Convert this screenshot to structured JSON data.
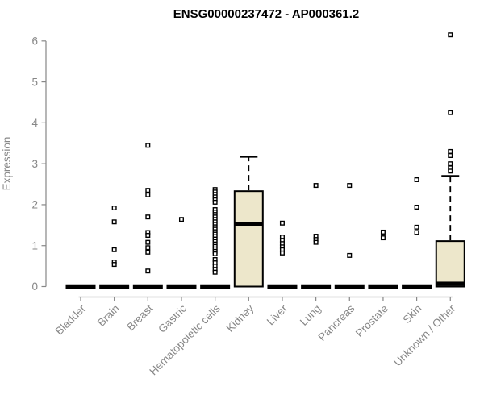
{
  "colors": {
    "axis": "#878787",
    "box_fill": "#ede7cb",
    "box_stroke": "#000000",
    "outlier_fill": "#ffffff",
    "outlier_stroke": "#000000",
    "title": "#000000",
    "background": "#ffffff"
  },
  "chart_data": {
    "type": "boxplot",
    "title": "ENSG00000237472 - AP000361.2",
    "ylabel": "Expression",
    "xlabel": "",
    "ylim": [
      0,
      6.2
    ],
    "yticks": [
      0,
      1,
      2,
      3,
      4,
      5,
      6
    ],
    "grid": false,
    "x_tick_rotation": 45,
    "categories": [
      "Bladder",
      "Brain",
      "Breast",
      "Gastric",
      "Hematopoietic cells",
      "Kidney",
      "Liver",
      "Lung",
      "Pancreas",
      "Prostate",
      "Skin",
      "Unknown / Other"
    ],
    "groups": [
      {
        "label": "Bladder",
        "q1": 0,
        "median": 0,
        "q3": 0,
        "whisker_high": 0,
        "outliers": []
      },
      {
        "label": "Brain",
        "q1": 0,
        "median": 0,
        "q3": 0,
        "whisker_high": 0,
        "outliers": [
          1.92,
          1.58,
          0.9,
          0.6,
          0.54
        ]
      },
      {
        "label": "Breast",
        "q1": 0,
        "median": 0,
        "q3": 0,
        "whisker_high": 0,
        "outliers": [
          3.45,
          2.35,
          2.24,
          1.7,
          1.32,
          1.25,
          1.08,
          0.95,
          0.84,
          0.38
        ]
      },
      {
        "label": "Gastric",
        "q1": 0,
        "median": 0,
        "q3": 0,
        "whisker_high": 0,
        "outliers": [
          1.64
        ]
      },
      {
        "label": "Hematopoietic cells",
        "q1": 0,
        "median": 0,
        "q3": 0,
        "whisker_high": 0,
        "outliers": [
          2.37,
          2.31,
          2.25,
          2.19,
          2.12,
          2.06,
          1.88,
          1.82,
          1.76,
          1.7,
          1.64,
          1.58,
          1.52,
          1.46,
          1.4,
          1.34,
          1.28,
          1.22,
          1.16,
          1.1,
          1.04,
          0.98,
          0.92,
          0.86,
          0.8,
          0.66,
          0.58,
          0.5,
          0.42,
          0.35
        ]
      },
      {
        "label": "Kidney",
        "q1": 0,
        "median": 1.53,
        "q3": 2.33,
        "whisker_high": 3.17,
        "outliers": []
      },
      {
        "label": "Liver",
        "q1": 0,
        "median": 0,
        "q3": 0,
        "whisker_high": 0,
        "outliers": [
          1.55,
          1.21,
          1.13,
          1.05,
          0.97,
          0.9,
          0.82
        ]
      },
      {
        "label": "Lung",
        "q1": 0,
        "median": 0,
        "q3": 0,
        "whisker_high": 0,
        "outliers": [
          2.47,
          1.23,
          1.15,
          1.08
        ]
      },
      {
        "label": "Pancreas",
        "q1": 0,
        "median": 0,
        "q3": 0,
        "whisker_high": 0,
        "outliers": [
          2.47,
          0.76
        ]
      },
      {
        "label": "Prostate",
        "q1": 0,
        "median": 0,
        "q3": 0,
        "whisker_high": 0,
        "outliers": [
          1.33,
          1.19
        ]
      },
      {
        "label": "Skin",
        "q1": 0,
        "median": 0,
        "q3": 0,
        "whisker_high": 0,
        "outliers": [
          2.61,
          1.94,
          1.45,
          1.32
        ]
      },
      {
        "label": "Unknown / Other",
        "q1": 0,
        "median": 0.07,
        "q3": 1.11,
        "whisker_high": 2.7,
        "outliers": [
          6.15,
          4.25,
          3.3,
          3.2,
          3.0,
          2.9,
          2.82
        ]
      }
    ]
  }
}
